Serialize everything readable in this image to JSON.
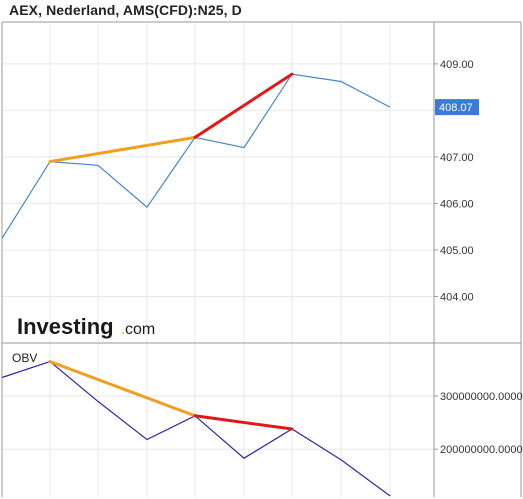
{
  "title": "AEX, Nederland, AMS(CFD):N25, D",
  "logo": {
    "main": "Investing",
    "dot": ".",
    "domain": "com"
  },
  "colors": {
    "price_line": "#4a86c8",
    "obv_line": "#2a2aa8",
    "trend_orange": "#f0a020",
    "trend_red": "#e01818",
    "tag_bg": "#3a7bd5",
    "grid": "#e8e8e8",
    "border": "#999999"
  },
  "chart_data": [
    {
      "type": "line",
      "panel": "price",
      "series": [
        {
          "values": [
            405.25,
            406.9,
            406.82,
            405.92,
            407.42,
            407.2,
            408.78,
            408.62,
            408.07
          ]
        }
      ],
      "ylim": [
        403.0,
        409.9
      ],
      "ytick_labels": [
        "409.00",
        "408.00",
        "407.00",
        "406.00",
        "405.00",
        "404.00"
      ],
      "ytick_values": [
        409,
        408,
        407,
        406,
        405,
        404
      ],
      "last_value_label": "408.07",
      "last_value": 408.07,
      "trend_lines": [
        {
          "color": "orange",
          "from": [
            1,
            406.9
          ],
          "to": [
            4,
            407.42
          ]
        },
        {
          "color": "red",
          "from": [
            4,
            407.42
          ],
          "to": [
            6,
            408.78
          ]
        }
      ],
      "grid": true
    },
    {
      "type": "line",
      "panel": "obv",
      "label": "OBV",
      "series": [
        {
          "values": [
            335000000,
            365000000,
            290000000,
            218000000,
            263000000,
            183000000,
            238000000,
            180000000,
            112000000
          ]
        }
      ],
      "ylim": [
        110000000,
        400000000
      ],
      "ytick_labels": [
        "300000000.0000",
        "200000000.0000"
      ],
      "ytick_values": [
        300000000,
        200000000
      ],
      "trend_lines": [
        {
          "color": "orange",
          "from": [
            1,
            365000000
          ],
          "to": [
            4,
            263000000
          ]
        },
        {
          "color": "red",
          "from": [
            4,
            263000000
          ],
          "to": [
            6,
            238000000
          ]
        }
      ],
      "grid": true
    }
  ]
}
